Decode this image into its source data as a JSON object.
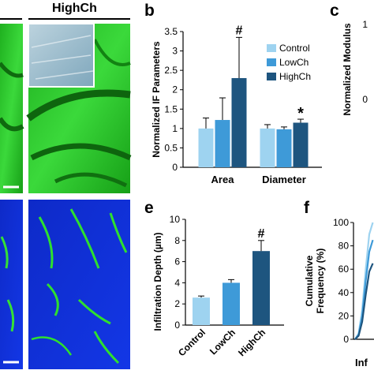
{
  "panels": {
    "b": "b",
    "c": "c",
    "e": "e",
    "f": "f",
    "micro_title": "HighCh"
  },
  "colors": {
    "control": "#9ED3F0",
    "lowch": "#3E9AD8",
    "highch": "#1E557F",
    "green": "#22C822",
    "blue": "#1030D8"
  },
  "chart_data": [
    {
      "id": "b",
      "type": "bar",
      "ylabel": "Normalized IF Parameters",
      "ylim": [
        0,
        3.5
      ],
      "yticks": [
        0,
        0.5,
        1,
        1.5,
        2,
        2.5,
        3,
        3.5
      ],
      "ytick_labels": [
        "0",
        "0.5",
        "1",
        "1.5",
        "2",
        "2.5",
        "3",
        "3.5"
      ],
      "categories": [
        "Area",
        "Diameter"
      ],
      "series": [
        {
          "name": "Control",
          "values": [
            1.0,
            1.0
          ],
          "errors": [
            0.27,
            0.1
          ]
        },
        {
          "name": "LowCh",
          "values": [
            1.22,
            0.98
          ],
          "errors": [
            0.57,
            0.06
          ]
        },
        {
          "name": "HighCh",
          "values": [
            2.3,
            1.15
          ],
          "errors": [
            1.05,
            0.09
          ]
        }
      ],
      "annotations": [
        {
          "text": "#",
          "category": "Area",
          "series": "HighCh"
        },
        {
          "text": "*",
          "category": "Diameter",
          "series": "HighCh"
        }
      ],
      "legend": "top-right"
    },
    {
      "id": "c",
      "type": "bar",
      "ylabel": "Normalized Modulus",
      "ytick_labels": [
        "1",
        "0"
      ]
    },
    {
      "id": "e",
      "type": "bar",
      "ylabel": "Infiltration Depth (µm)",
      "ylim": [
        0,
        10
      ],
      "yticks": [
        0,
        2,
        4,
        6,
        8,
        10
      ],
      "ytick_labels": [
        "0",
        "2",
        "4",
        "6",
        "8",
        "10"
      ],
      "categories": [
        "Control",
        "LowCh",
        "HighCh"
      ],
      "values": [
        2.6,
        4.0,
        7.0
      ],
      "errors": [
        0.15,
        0.3,
        1.0
      ],
      "annotations": [
        {
          "text": "#",
          "category": "HighCh"
        }
      ]
    },
    {
      "id": "f",
      "type": "line",
      "ylabel": "Cumulative Frequency (%)",
      "xlabel": "Inf",
      "ylim": [
        0,
        100
      ],
      "yticks": [
        0,
        20,
        40,
        60,
        80,
        100
      ],
      "ytick_labels": [
        "0",
        "20",
        "40",
        "60",
        "80",
        "100"
      ],
      "series": [
        {
          "values": [
            0,
            5,
            25,
            60,
            90,
            100
          ]
        },
        {
          "values": [
            0,
            4,
            20,
            50,
            75,
            85
          ]
        },
        {
          "values": [
            0,
            3,
            15,
            38,
            58,
            65
          ]
        }
      ]
    }
  ]
}
